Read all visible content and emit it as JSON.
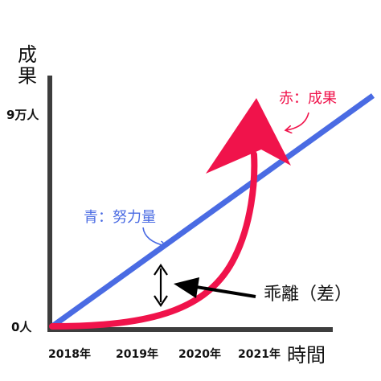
{
  "chart_data": {
    "type": "line",
    "ylabel": "成果",
    "xlabel": "時間",
    "x_ticks": [
      "2018年",
      "2019年",
      "2020年",
      "2021年"
    ],
    "y_ticks": [
      "0人",
      "9万人"
    ],
    "ylim": [
      "0人",
      "9万人"
    ],
    "grid": false,
    "series": [
      {
        "name": "青：努力量",
        "color": "#4a6be3",
        "shape": "linear",
        "values": [
          0,
          2.1,
          4.3,
          6.5
        ]
      },
      {
        "name": "赤：成果",
        "color": "#f0134b",
        "shape": "exponential",
        "values": [
          0,
          0.3,
          2.1,
          9
        ]
      }
    ],
    "annotations": [
      {
        "text": "乖離（差）",
        "target": "gap between the two lines"
      }
    ]
  },
  "colors": {
    "axis": "#3d3d3d",
    "effort": "#4a6be3",
    "result": "#f0134b",
    "text": "#111111"
  }
}
